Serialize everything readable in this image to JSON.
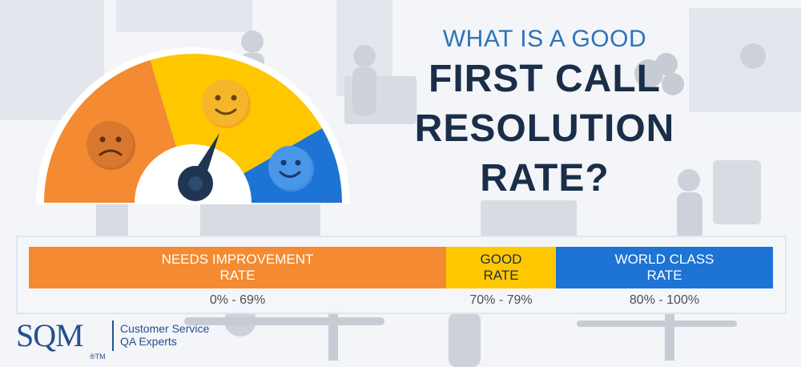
{
  "title": {
    "line1": "WHAT IS A GOOD",
    "line2": "FIRST CALL",
    "line3": "RESOLUTION",
    "line4": "RATE?"
  },
  "scale": [
    {
      "label_line1": "NEEDS IMPROVEMENT",
      "label_line2": "RATE",
      "range": "0% - 69%",
      "color": "#f48a31"
    },
    {
      "label_line1": "GOOD",
      "label_line2": "RATE",
      "range": "70% - 79%",
      "color": "#ffc700"
    },
    {
      "label_line1": "WORLD CLASS",
      "label_line2": "RATE",
      "range": "80% - 100%",
      "color": "#1d74d4"
    }
  ],
  "gauge": {
    "segments": [
      "needs-improvement",
      "good",
      "world-class"
    ],
    "faces": [
      "sad-face-icon",
      "smile-face-icon",
      "happy-face-icon"
    ],
    "needle_value_percent": 75
  },
  "logo": {
    "wordmark": "SQM",
    "trademark": "®TM",
    "tagline_line1": "Customer Service",
    "tagline_line2": "QA Experts"
  }
}
